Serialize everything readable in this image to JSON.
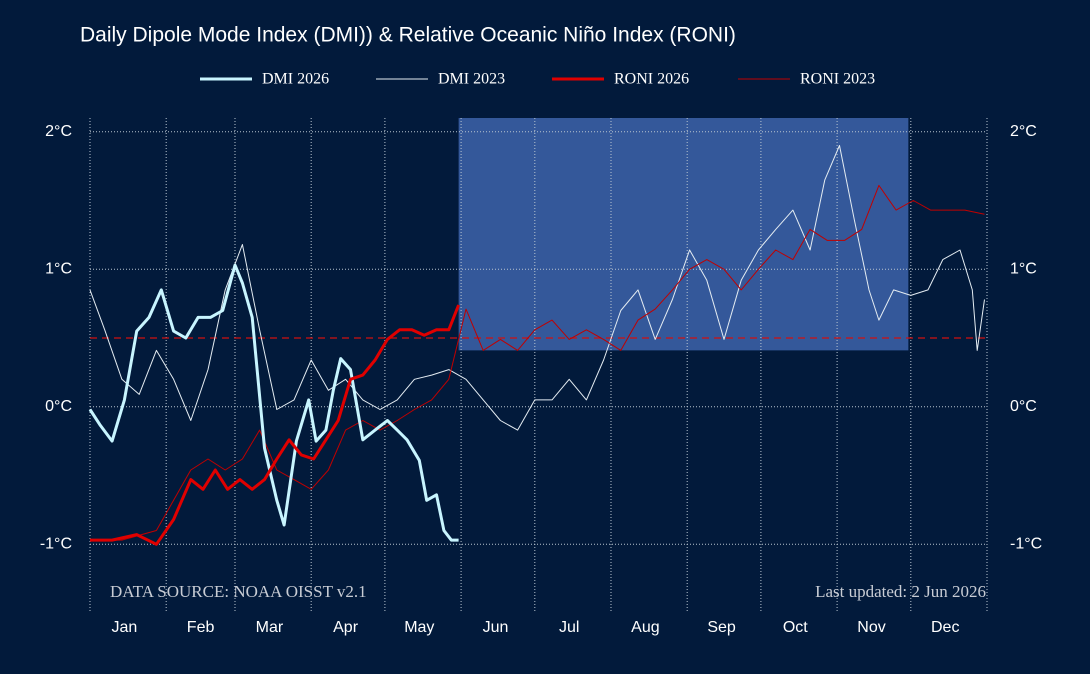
{
  "chart_data": {
    "type": "line",
    "title": "Daily Dipole Mode Index (DMI)) & Relative Oceanic Niño Index (RONI)",
    "source_note": "DATA SOURCE: NOAA OISST v2.1",
    "updated_note": "Last updated: 2 Jun 2026",
    "xlim": [
      1,
      366
    ],
    "xticks": [
      {
        "value": 15,
        "label": "Jan"
      },
      {
        "value": 46,
        "label": "Feb"
      },
      {
        "value": 74,
        "label": "Mar"
      },
      {
        "value": 105,
        "label": "Apr"
      },
      {
        "value": 135,
        "label": "May"
      },
      {
        "value": 166,
        "label": "Jun"
      },
      {
        "value": 196,
        "label": "Jul"
      },
      {
        "value": 227,
        "label": "Aug"
      },
      {
        "value": 258,
        "label": "Sep"
      },
      {
        "value": 288,
        "label": "Oct"
      },
      {
        "value": 319,
        "label": "Nov"
      },
      {
        "value": 349,
        "label": "Dec"
      }
    ],
    "xgrid": [
      1,
      32,
      60,
      91,
      121,
      152,
      182,
      213,
      244,
      274,
      305,
      335,
      366
    ],
    "ylim": [
      -1.5,
      2.1
    ],
    "yticks": [
      {
        "value": -1,
        "label": "-1°C"
      },
      {
        "value": 0,
        "label": "0°C"
      },
      {
        "value": 1,
        "label": "1°C"
      },
      {
        "value": 2,
        "label": "2°C"
      }
    ],
    "grid": true,
    "threshold": {
      "value": 0.5,
      "color": "#d01010"
    },
    "highlight": {
      "x": [
        151,
        334
      ],
      "y": [
        0.41,
        2.1
      ],
      "color": "#34589a"
    },
    "series": [
      {
        "name": "DMI 2026",
        "color": "#c8f5ff",
        "width": 3,
        "x": [
          1,
          5,
          10,
          15,
          20,
          25,
          30,
          35,
          40,
          45,
          50,
          55,
          60,
          63,
          67,
          72,
          77,
          80,
          85,
          90,
          93,
          97,
          100,
          103,
          107,
          112,
          117,
          122,
          126,
          130,
          135,
          138,
          142,
          145,
          148,
          151
        ],
        "values": [
          -0.02,
          -0.13,
          -0.25,
          0.05,
          0.55,
          0.65,
          0.85,
          0.55,
          0.5,
          0.65,
          0.65,
          0.7,
          1.03,
          0.9,
          0.65,
          -0.3,
          -0.68,
          -0.86,
          -0.25,
          0.05,
          -0.25,
          -0.17,
          0.12,
          0.35,
          0.27,
          -0.24,
          -0.17,
          -0.1,
          -0.17,
          -0.24,
          -0.39,
          -0.68,
          -0.64,
          -0.9,
          -0.97,
          -0.97
        ]
      },
      {
        "name": "DMI 2023",
        "color": "#e4ecf2",
        "width": 1,
        "x": [
          1,
          7,
          14,
          21,
          28,
          35,
          42,
          49,
          56,
          63,
          70,
          77,
          84,
          91,
          98,
          105,
          112,
          119,
          126,
          133,
          140,
          147,
          154,
          161,
          168,
          175,
          182,
          189,
          196,
          203,
          210,
          217,
          224,
          231,
          238,
          245,
          252,
          259,
          266,
          273,
          280,
          287,
          294,
          300,
          306,
          312,
          318,
          322,
          328,
          335,
          342,
          348,
          355,
          360,
          362,
          365
        ],
        "values": [
          0.85,
          0.56,
          0.2,
          0.09,
          0.41,
          0.2,
          -0.1,
          0.27,
          0.85,
          1.18,
          0.56,
          -0.02,
          0.05,
          0.34,
          0.12,
          0.2,
          0.05,
          -0.02,
          0.05,
          0.2,
          0.23,
          0.27,
          0.2,
          0.05,
          -0.1,
          -0.17,
          0.05,
          0.05,
          0.2,
          0.05,
          0.34,
          0.7,
          0.85,
          0.49,
          0.78,
          1.14,
          0.92,
          0.49,
          0.92,
          1.14,
          1.29,
          1.43,
          1.14,
          1.65,
          1.9,
          1.36,
          0.85,
          0.63,
          0.85,
          0.81,
          0.85,
          1.07,
          1.14,
          0.85,
          0.41,
          0.78
        ]
      },
      {
        "name": "RONI 2026",
        "color": "#e00000",
        "width": 3,
        "x": [
          1,
          10,
          20,
          28,
          35,
          42,
          47,
          52,
          57,
          62,
          67,
          72,
          77,
          82,
          87,
          92,
          97,
          102,
          107,
          112,
          117,
          122,
          127,
          132,
          137,
          142,
          147,
          151
        ],
        "values": [
          -0.97,
          -0.97,
          -0.93,
          -1.0,
          -0.82,
          -0.53,
          -0.6,
          -0.46,
          -0.6,
          -0.53,
          -0.6,
          -0.53,
          -0.38,
          -0.24,
          -0.35,
          -0.38,
          -0.24,
          -0.1,
          0.2,
          0.23,
          0.34,
          0.49,
          0.56,
          0.56,
          0.52,
          0.56,
          0.56,
          0.74
        ]
      },
      {
        "name": "RONI 2023",
        "color": "#c00000",
        "width": 1,
        "x": [
          1,
          14,
          28,
          35,
          42,
          49,
          56,
          63,
          70,
          77,
          84,
          91,
          98,
          105,
          112,
          119,
          126,
          133,
          140,
          147,
          154,
          161,
          168,
          175,
          182,
          189,
          196,
          203,
          210,
          217,
          224,
          231,
          238,
          245,
          252,
          259,
          266,
          273,
          280,
          287,
          294,
          301,
          308,
          315,
          322,
          329,
          336,
          343,
          350,
          357,
          365
        ],
        "values": [
          -0.97,
          -0.97,
          -0.9,
          -0.68,
          -0.46,
          -0.38,
          -0.46,
          -0.38,
          -0.17,
          -0.46,
          -0.53,
          -0.6,
          -0.46,
          -0.17,
          -0.1,
          -0.17,
          -0.1,
          -0.02,
          0.05,
          0.2,
          0.71,
          0.41,
          0.49,
          0.41,
          0.56,
          0.63,
          0.49,
          0.56,
          0.49,
          0.41,
          0.63,
          0.71,
          0.85,
          1.0,
          1.07,
          1.0,
          0.85,
          1.0,
          1.14,
          1.07,
          1.29,
          1.21,
          1.21,
          1.29,
          1.61,
          1.43,
          1.5,
          1.43,
          1.43,
          1.43,
          1.4
        ]
      }
    ]
  }
}
